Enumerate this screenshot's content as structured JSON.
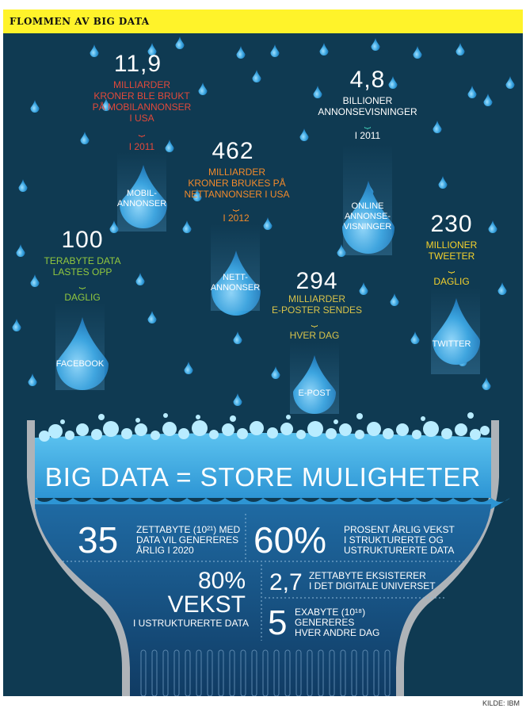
{
  "header": {
    "title": "FLOMMEN AV BIG DATA"
  },
  "drops": [
    {
      "id": "mobil",
      "value": "11,9",
      "desc": "MILLIARDER\nKRONER  BLE BRUKT\nPÅ MOBILANNONSER\nI USA",
      "period": "I 2011",
      "label": "MOBIL-\nANNONSER",
      "color": "#e2493a"
    },
    {
      "id": "nett",
      "value": "462",
      "desc": "MILLIARDER\nKRONER BRUKES PÅ\nNETTANNONSER I USA",
      "period": "I 2012",
      "label": "NETT-\nANNONSER",
      "color": "#f28a2b"
    },
    {
      "id": "online",
      "value": "4,8",
      "desc": "BILLIONER\nANNONSEVISNINGER",
      "period": "I 2011",
      "label": "ONLINE\nANNONSE-\nVISNINGER",
      "color": "#ffffff",
      "brace_color": "#3ec3b0"
    },
    {
      "id": "facebook",
      "value": "100",
      "desc": "TERABYTE DATA\nLASTES OPP",
      "period": "DAGLIG",
      "label": "FACEBOOK",
      "color": "#92c83e"
    },
    {
      "id": "epost",
      "value": "294",
      "desc": "MILLIARDER\nE-POSTER SENDES",
      "period": "HVER DAG",
      "label": "E-POST",
      "color": "#d8c34a"
    },
    {
      "id": "twitter",
      "value": "230",
      "desc": "MILLIONER\nTWEETER",
      "period": "DAGLIG",
      "label": "TWITTER",
      "color": "#f4d12c"
    }
  ],
  "basin": {
    "headline": "BIG DATA = STORE MULIGHETER",
    "stats": [
      {
        "id": "zettabyte35",
        "big": "35",
        "text": "ZETTABYTE (10²¹) MED\nDATA VIL GENERERES\nÅRLIG I 2020"
      },
      {
        "id": "vekst60",
        "big": "60%",
        "text": "PROSENT ÅRLIG VEKST\nI STRUKTURERTE OG\nUSTRUKTURERTE DATA"
      },
      {
        "id": "vekst80",
        "big": "80%",
        "big2": "VEKST",
        "text": "I USTRUKTURERTE DATA"
      },
      {
        "id": "zettabyte27",
        "big": "2,7",
        "text": "ZETTABYTE EKSISTERER\nI DET DIGITALE UNIVERSET"
      },
      {
        "id": "exabyte5",
        "big": "5",
        "text": "EXABYTE (10¹⁸)\nGENERERES\nHVER ANDRE DAG"
      }
    ]
  },
  "source": "KILDE: IBM",
  "colors": {
    "background": "#0f3a52",
    "header": "#fff32a",
    "water_light": "#4fb3e6",
    "water_dark": "#1b4f7e"
  }
}
